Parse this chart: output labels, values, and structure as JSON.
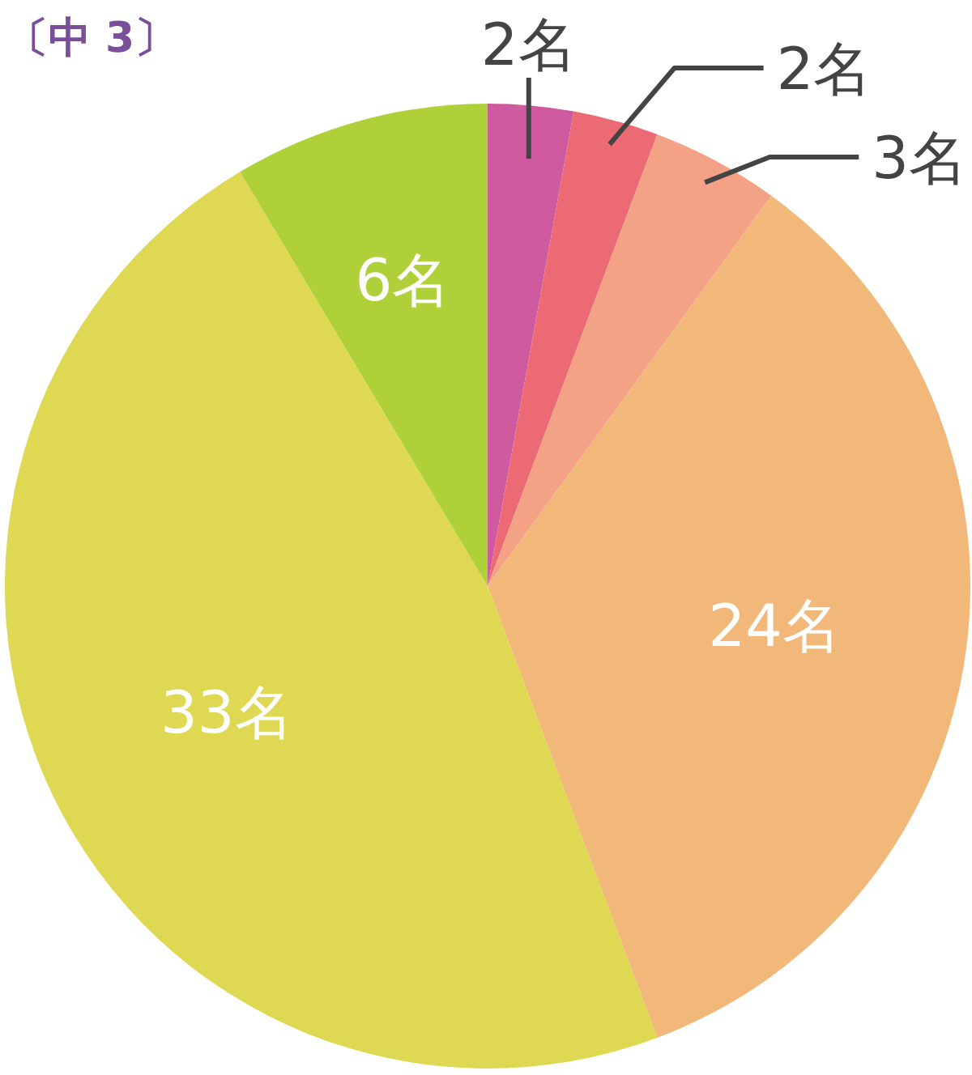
{
  "chart_data": {
    "type": "pie",
    "title": "〔中 3〕",
    "categories": [
      null,
      null,
      null,
      null,
      null,
      null
    ],
    "values": [
      2,
      2,
      3,
      24,
      33,
      6
    ],
    "colors": [
      "#d05aa0",
      "#ec6a74",
      "#f3a285",
      "#f1b87a",
      "#dfd853",
      "#b0d03a"
    ],
    "value_labels": [
      "2名",
      "2名",
      "3名",
      "24名",
      "33名",
      "6名"
    ]
  }
}
